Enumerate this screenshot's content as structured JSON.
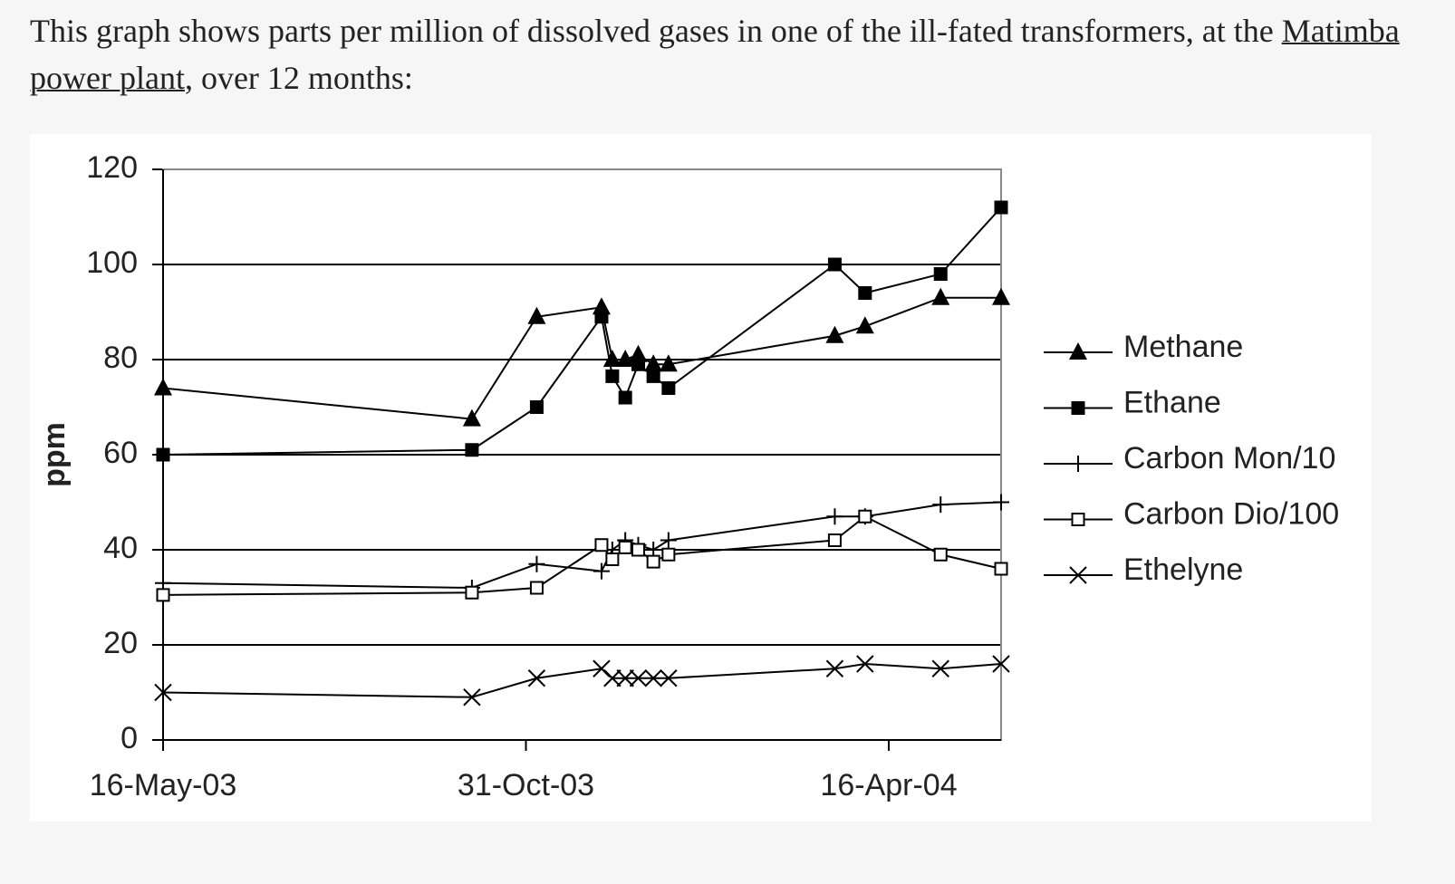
{
  "text": {
    "line_start": "This graph shows parts per million of dissolved gases in one of the ill-fated transformers, at the",
    "link": "Matimba power plant",
    "line_end": ", over 12 months:"
  },
  "chart_data": {
    "type": "line",
    "y_label": "ppm",
    "x": [
      "2003-05-16",
      "2003-10-06",
      "2003-11-05",
      "2003-12-05",
      "2003-12-10",
      "2003-12-16",
      "2003-12-22",
      "2003-12-29",
      "2004-01-05",
      "2004-03-22",
      "2004-04-05",
      "2004-05-10",
      "2004-06-07"
    ],
    "xlim": [
      "2003-05-16",
      "2004-06-07"
    ],
    "xticks": [
      {
        "value": "2003-05-16",
        "label": "16-May-03"
      },
      {
        "value": "2003-10-31",
        "label": "31-Oct-03"
      },
      {
        "value": "2004-04-16",
        "label": "16-Apr-04"
      }
    ],
    "ylim": [
      0,
      120
    ],
    "yticks": [
      0,
      20,
      40,
      60,
      80,
      100,
      120
    ],
    "grid": true,
    "legend": "right",
    "series": [
      {
        "name": "Methane",
        "color": "#000000",
        "marker": "triangle",
        "values": [
          74,
          67.5,
          89,
          91,
          80,
          80,
          81,
          79,
          79,
          85,
          87,
          93,
          93
        ]
      },
      {
        "name": "Ethane",
        "color": "#000000",
        "marker": "square",
        "values": [
          60,
          61,
          70,
          89,
          76.5,
          72,
          79,
          76.5,
          74,
          100,
          94,
          98,
          112
        ]
      },
      {
        "name": "Carbon Mon/10",
        "color": "#000000",
        "marker": "plus",
        "values": [
          33,
          32,
          37,
          35.5,
          40,
          42,
          41,
          40,
          42,
          47,
          47,
          49.5,
          50
        ]
      },
      {
        "name": "Carbon Dio/100",
        "color": "#000000",
        "marker": "open-square",
        "values": [
          30.5,
          31,
          32,
          41,
          38,
          40.5,
          40,
          37.5,
          39,
          42,
          47,
          39,
          36
        ]
      },
      {
        "name": "Ethelyne",
        "color": "#000000",
        "marker": "cross",
        "values": [
          10,
          9,
          13,
          15,
          13,
          13,
          13,
          13,
          13,
          15,
          16,
          15,
          16
        ]
      }
    ]
  }
}
